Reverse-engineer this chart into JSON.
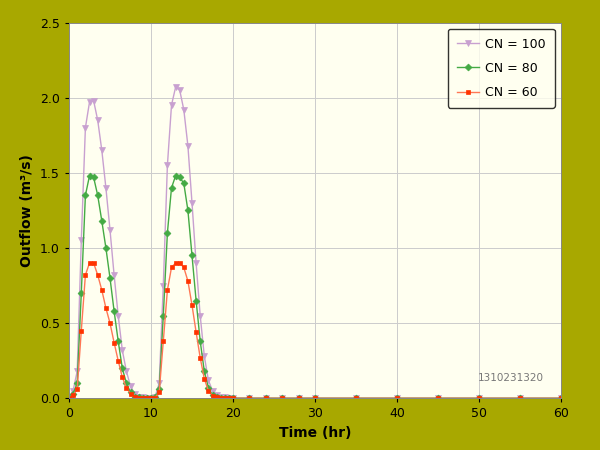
{
  "xlabel": "Time (hr)",
  "ylabel": "Outflow (m³/s)",
  "xlim": [
    0,
    60
  ],
  "ylim": [
    0,
    2.5
  ],
  "xticks": [
    0,
    10,
    20,
    30,
    40,
    50,
    60
  ],
  "yticks": [
    0,
    0.5,
    1.0,
    1.5,
    2.0,
    2.5
  ],
  "background_outer": "#a8a800",
  "background_inner": "#fffff0",
  "grid_color": "#cccccc",
  "watermark": "1310231320",
  "series": [
    {
      "label": "CN = 100",
      "color": "#c8a0d0",
      "marker": "v",
      "marker_color": "#c8a0d0",
      "marker_size": 4,
      "time": [
        0,
        0.5,
        1,
        1.5,
        2,
        2.5,
        3,
        3.5,
        4,
        4.5,
        5,
        5.5,
        6,
        6.5,
        7,
        7.5,
        8,
        8.5,
        9,
        9.5,
        10,
        10.5,
        11,
        11.5,
        12,
        12.5,
        13,
        13.5,
        14,
        14.5,
        15,
        15.5,
        16,
        16.5,
        17,
        17.5,
        18,
        18.5,
        19,
        19.5,
        20,
        22,
        24,
        26,
        28,
        30,
        35,
        40,
        45,
        50,
        55,
        60
      ],
      "values": [
        0,
        0.05,
        0.18,
        1.05,
        1.8,
        1.97,
        1.98,
        1.85,
        1.65,
        1.4,
        1.12,
        0.82,
        0.55,
        0.32,
        0.18,
        0.08,
        0.03,
        0.01,
        0.005,
        0.003,
        0.003,
        0.01,
        0.1,
        0.75,
        1.55,
        1.95,
        2.07,
        2.05,
        1.92,
        1.68,
        1.3,
        0.9,
        0.55,
        0.28,
        0.12,
        0.05,
        0.02,
        0.01,
        0.005,
        0.003,
        0.002,
        0.001,
        0.0,
        0.0,
        0.0,
        0.0,
        0.0,
        0.0,
        0.0,
        0.0,
        0.0,
        0.0
      ]
    },
    {
      "label": "CN = 80",
      "color": "#44aa44",
      "marker": "D",
      "marker_color": "#44aa44",
      "marker_size": 3.5,
      "time": [
        0,
        0.5,
        1,
        1.5,
        2,
        2.5,
        3,
        3.5,
        4,
        4.5,
        5,
        5.5,
        6,
        6.5,
        7,
        7.5,
        8,
        8.5,
        9,
        9.5,
        10,
        10.5,
        11,
        11.5,
        12,
        12.5,
        13,
        13.5,
        14,
        14.5,
        15,
        15.5,
        16,
        16.5,
        17,
        17.5,
        18,
        18.5,
        19,
        19.5,
        20,
        22,
        24,
        26,
        28,
        30,
        35,
        40,
        45,
        50,
        55,
        60
      ],
      "values": [
        0,
        0.03,
        0.1,
        0.7,
        1.35,
        1.48,
        1.47,
        1.35,
        1.18,
        1.0,
        0.8,
        0.58,
        0.38,
        0.2,
        0.1,
        0.04,
        0.01,
        0.005,
        0.003,
        0.002,
        0.002,
        0.005,
        0.06,
        0.55,
        1.1,
        1.4,
        1.48,
        1.47,
        1.43,
        1.25,
        0.95,
        0.65,
        0.38,
        0.18,
        0.07,
        0.02,
        0.008,
        0.003,
        0.001,
        0.001,
        0.0,
        0.0,
        0.0,
        0.0,
        0.0,
        0.0,
        0.0,
        0.0,
        0.0,
        0.0,
        0.0,
        0.0
      ]
    },
    {
      "label": "CN = 60",
      "color": "#ff7755",
      "marker": "s",
      "marker_color": "#ff3300",
      "marker_size": 3.5,
      "time": [
        0,
        0.5,
        1,
        1.5,
        2,
        2.5,
        3,
        3.5,
        4,
        4.5,
        5,
        5.5,
        6,
        6.5,
        7,
        7.5,
        8,
        8.5,
        9,
        9.5,
        10,
        10.5,
        11,
        11.5,
        12,
        12.5,
        13,
        13.5,
        14,
        14.5,
        15,
        15.5,
        16,
        16.5,
        17,
        17.5,
        18,
        18.5,
        19,
        19.5,
        20,
        22,
        24,
        26,
        28,
        30,
        35,
        40,
        45,
        50,
        55,
        60
      ],
      "values": [
        0,
        0.02,
        0.06,
        0.45,
        0.82,
        0.9,
        0.9,
        0.82,
        0.72,
        0.6,
        0.5,
        0.37,
        0.25,
        0.14,
        0.07,
        0.03,
        0.01,
        0.004,
        0.002,
        0.001,
        0.001,
        0.003,
        0.04,
        0.38,
        0.72,
        0.87,
        0.9,
        0.9,
        0.87,
        0.78,
        0.62,
        0.44,
        0.27,
        0.13,
        0.05,
        0.018,
        0.006,
        0.002,
        0.001,
        0.0,
        0.0,
        0.0,
        0.0,
        0.0,
        0.0,
        0.0,
        0.0,
        0.0,
        0.0,
        0.0,
        0.0,
        0.0
      ]
    }
  ]
}
